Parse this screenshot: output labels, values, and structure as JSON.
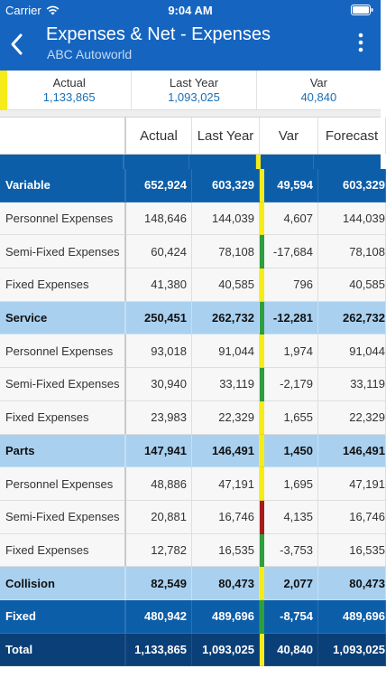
{
  "status_bar": {
    "carrier": "Carrier",
    "time": "9:04 AM"
  },
  "nav": {
    "title": "Expenses & Net - Expenses",
    "subtitle": "ABC Autoworld",
    "back_icon": "chevron-left-icon",
    "more_icon": "more-vertical-icon"
  },
  "summary": [
    {
      "label": "Actual",
      "value": "1,133,865"
    },
    {
      "label": "Last Year",
      "value": "1,093,025"
    },
    {
      "label": "Var",
      "value": "40,840"
    }
  ],
  "table": {
    "headers": {
      "actual": "Actual",
      "last_year": "Last Year",
      "var": "Var",
      "forecast": "Forecast"
    },
    "rows": [
      {
        "style": "dark",
        "name": "Variable",
        "actual": "652,924",
        "last_year": "603,329",
        "var": "49,594",
        "forecast": "603,329",
        "indicator": "#f5ec1a"
      },
      {
        "style": "detail",
        "name": "Personnel Expenses",
        "actual": "148,646",
        "last_year": "144,039",
        "var": "4,607",
        "forecast": "144,039",
        "indicator": "#f5ec1a"
      },
      {
        "style": "detail",
        "name": "Semi-Fixed Expenses",
        "actual": "60,424",
        "last_year": "78,108",
        "var": "-17,684",
        "forecast": "78,108",
        "indicator": "#2e9e3e"
      },
      {
        "style": "detail",
        "name": "Fixed Expenses",
        "actual": "41,380",
        "last_year": "40,585",
        "var": "796",
        "forecast": "40,585",
        "indicator": "#f5ec1a"
      },
      {
        "style": "light",
        "name": "Service",
        "actual": "250,451",
        "last_year": "262,732",
        "var": "-12,281",
        "forecast": "262,732",
        "indicator": "#2e9e3e"
      },
      {
        "style": "detail",
        "name": "Personnel Expenses",
        "actual": "93,018",
        "last_year": "91,044",
        "var": "1,974",
        "forecast": "91,044",
        "indicator": "#f5ec1a"
      },
      {
        "style": "detail",
        "name": "Semi-Fixed Expenses",
        "actual": "30,940",
        "last_year": "33,119",
        "var": "-2,179",
        "forecast": "33,119",
        "indicator": "#2e9e3e"
      },
      {
        "style": "detail",
        "name": "Fixed Expenses",
        "actual": "23,983",
        "last_year": "22,329",
        "var": "1,655",
        "forecast": "22,329",
        "indicator": "#f5ec1a"
      },
      {
        "style": "light",
        "name": "Parts",
        "actual": "147,941",
        "last_year": "146,491",
        "var": "1,450",
        "forecast": "146,491",
        "indicator": "#f5ec1a"
      },
      {
        "style": "detail",
        "name": "Personnel Expenses",
        "actual": "48,886",
        "last_year": "47,191",
        "var": "1,695",
        "forecast": "47,191",
        "indicator": "#f5ec1a"
      },
      {
        "style": "detail",
        "name": "Semi-Fixed Expenses",
        "actual": "20,881",
        "last_year": "16,746",
        "var": "4,135",
        "forecast": "16,746",
        "indicator": "#a51c1c"
      },
      {
        "style": "detail",
        "name": "Fixed Expenses",
        "actual": "12,782",
        "last_year": "16,535",
        "var": "-3,753",
        "forecast": "16,535",
        "indicator": "#2e9e3e"
      },
      {
        "style": "light",
        "name": "Collision",
        "actual": "82,549",
        "last_year": "80,473",
        "var": "2,077",
        "forecast": "80,473",
        "indicator": "#f5ec1a"
      },
      {
        "style": "dark",
        "name": "Fixed",
        "actual": "480,942",
        "last_year": "489,696",
        "var": "-8,754",
        "forecast": "489,696",
        "indicator": "#2e9e3e"
      },
      {
        "style": "navy",
        "name": "Total",
        "actual": "1,133,865",
        "last_year": "1,093,025",
        "var": "40,840",
        "forecast": "1,093,025",
        "indicator": "#f5ec1a"
      }
    ]
  }
}
